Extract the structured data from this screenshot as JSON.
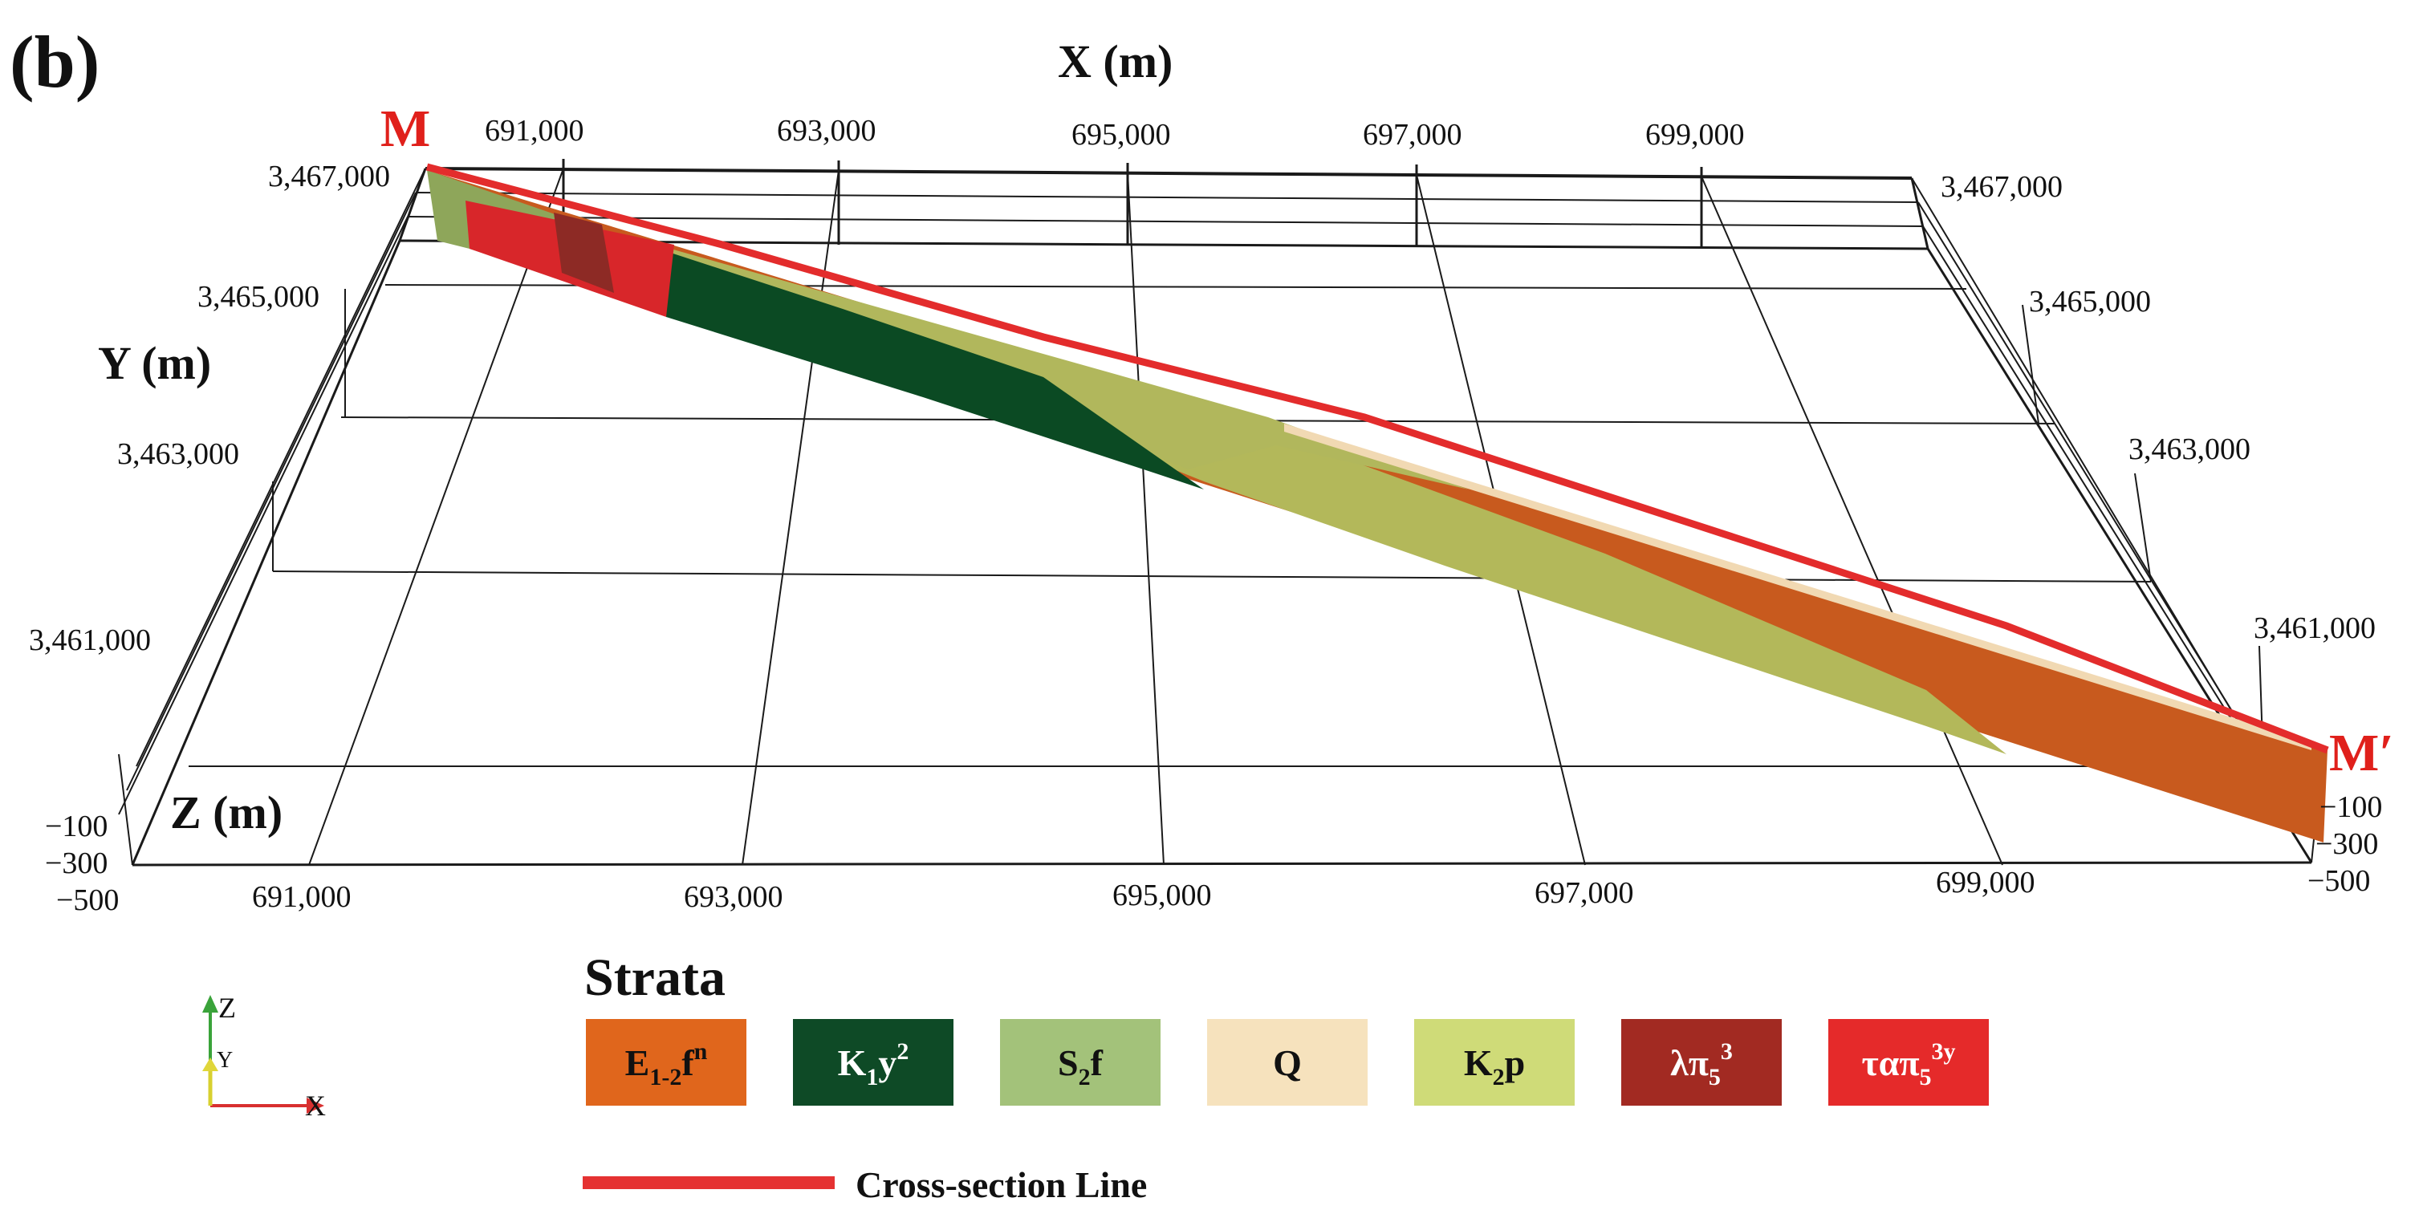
{
  "panel_label": "(b)",
  "axes": {
    "x_title": "X (m)",
    "y_title": "Y (m)",
    "z_title": "Z (m)",
    "x_top_ticks": [
      "691,000",
      "693,000",
      "695,000",
      "697,000",
      "699,000"
    ],
    "x_bottom_ticks": [
      "691,000",
      "693,000",
      "695,000",
      "697,000",
      "699,000"
    ],
    "y_left_ticks": [
      "3,467,000",
      "3,465,000",
      "3,463,000",
      "3,461,000"
    ],
    "y_right_ticks": [
      "3,467,000",
      "3,465,000",
      "3,463,000",
      "3,461,000"
    ],
    "z_left_ticks": [
      "−100",
      "−300",
      "−500"
    ],
    "z_right_ticks": [
      "−100",
      "−300",
      "−500"
    ]
  },
  "section": {
    "start_label": "M",
    "end_label": "M′"
  },
  "orientation": {
    "x": "X",
    "y": "Y",
    "z": "Z"
  },
  "legend": {
    "title": "Strata",
    "items": [
      {
        "base": "E",
        "sub": "1-2",
        "tail": "f",
        "sup": "n",
        "color": "#e0661c",
        "text_color": "#111111"
      },
      {
        "base": "K",
        "sub": "1",
        "tail": "y",
        "sup": "2",
        "color": "#0e4a26",
        "text_color": "#ffffff"
      },
      {
        "base": "S",
        "sub": "2",
        "tail": "f",
        "sup": "",
        "color": "#a3c27a",
        "text_color": "#111111"
      },
      {
        "base": "Q",
        "sub": "",
        "tail": "",
        "sup": "",
        "color": "#f6e2bd",
        "text_color": "#111111"
      },
      {
        "base": "K",
        "sub": "2",
        "tail": "p",
        "sup": "",
        "color": "#cfdb78",
        "text_color": "#111111"
      },
      {
        "base": "λπ",
        "sub": "5",
        "tail": "",
        "sup": "3",
        "color": "#a22a22",
        "text_color": "#ffffff"
      },
      {
        "base": "ταπ",
        "sub": "5",
        "tail": "",
        "sup": "3y",
        "color": "#e52a2a",
        "text_color": "#ffffff"
      }
    ],
    "line_label": "Cross-section Line",
    "line_color": "#e53232"
  }
}
